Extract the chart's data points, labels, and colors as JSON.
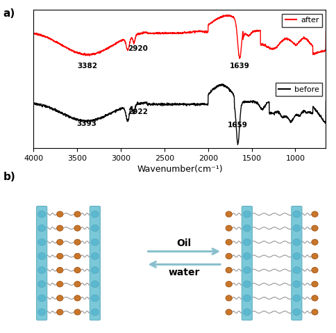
{
  "xlabel": "Wavenumber(cm⁻¹)",
  "xticks": [
    4000,
    3500,
    3000,
    2500,
    2000,
    1500,
    1000
  ],
  "red_legend": "after",
  "black_legend": "before",
  "oil_label": "Oil",
  "water_label": "water",
  "blue_color": "#7bc8d8",
  "blue_dark": "#5aabbf",
  "orange_color": "#c8762a",
  "orange_dark": "#a05010",
  "arrow_color": "#88bfcc",
  "gray_chain": "#999999"
}
